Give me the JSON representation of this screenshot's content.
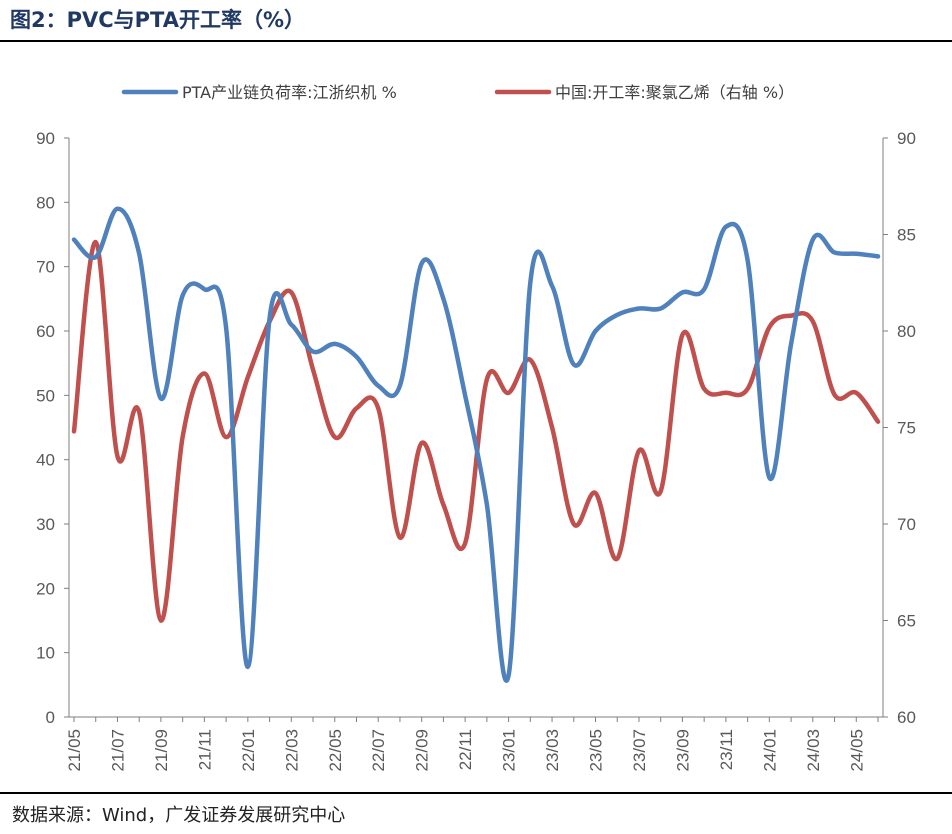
{
  "header": {
    "title": "图2：PVC与PTA开工率（%）"
  },
  "footer": {
    "source": "数据来源：Wind，广发证券发展研究中心"
  },
  "chart_data": {
    "type": "line",
    "x": [
      "21/05",
      "21/06",
      "21/07",
      "21/08",
      "21/09",
      "21/10",
      "21/11",
      "21/12",
      "22/01",
      "22/02",
      "22/03",
      "22/04",
      "22/05",
      "22/06",
      "22/07",
      "22/08",
      "22/09",
      "22/10",
      "22/11",
      "22/12",
      "23/01",
      "23/02",
      "23/03",
      "23/04",
      "23/05",
      "23/06",
      "23/07",
      "23/08",
      "23/09",
      "23/10",
      "23/11",
      "23/12",
      "24/01",
      "24/02",
      "24/03",
      "24/04",
      "24/05",
      "24/06"
    ],
    "x_tick_labels": [
      "21/05",
      "21/07",
      "21/09",
      "21/11",
      "22/01",
      "22/03",
      "22/05",
      "22/07",
      "22/09",
      "22/11",
      "23/01",
      "23/03",
      "23/05",
      "23/07",
      "23/09",
      "23/11",
      "24/01",
      "24/03",
      "24/05"
    ],
    "y_left": {
      "ticks": [
        "0",
        "10",
        "20",
        "30",
        "40",
        "50",
        "60",
        "70",
        "80",
        "90"
      ],
      "ylim": [
        0,
        90
      ]
    },
    "y_right": {
      "ticks": [
        "60",
        "65",
        "70",
        "75",
        "80",
        "85",
        "90"
      ],
      "ylim": [
        60,
        90
      ]
    },
    "legend_position": "top",
    "series": [
      {
        "name": "PTA产业链负荷率:江浙织机 %",
        "axis": "left",
        "color": "#4f81bd",
        "values": [
          74.2,
          71.5,
          79.0,
          72.0,
          49.5,
          65.5,
          66.5,
          60.5,
          7.8,
          62.0,
          61.0,
          56.8,
          58.0,
          56.0,
          51.5,
          51.5,
          70.5,
          65.0,
          50.0,
          33.0,
          6.5,
          67.5,
          67.0,
          54.8,
          60.0,
          62.5,
          63.5,
          63.5,
          66.0,
          66.5,
          76.2,
          71.0,
          37.2,
          58.0,
          74.2,
          72.2,
          72.0,
          71.6
        ]
      },
      {
        "name": "中国:开工率:聚氯乙烯（右轴 %）",
        "axis": "right",
        "color": "#c0504d",
        "values": [
          74.8,
          84.6,
          73.5,
          75.8,
          65.0,
          74.5,
          77.8,
          74.5,
          77.6,
          80.5,
          82.0,
          78.0,
          74.5,
          76.0,
          76.0,
          69.3,
          74.2,
          71.0,
          69.0,
          77.5,
          76.8,
          78.5,
          75.0,
          70.0,
          71.6,
          68.2,
          73.8,
          71.7,
          79.8,
          77.0,
          76.8,
          77.0,
          80.2,
          80.8,
          80.5,
          76.7,
          76.8,
          75.3
        ]
      }
    ]
  }
}
